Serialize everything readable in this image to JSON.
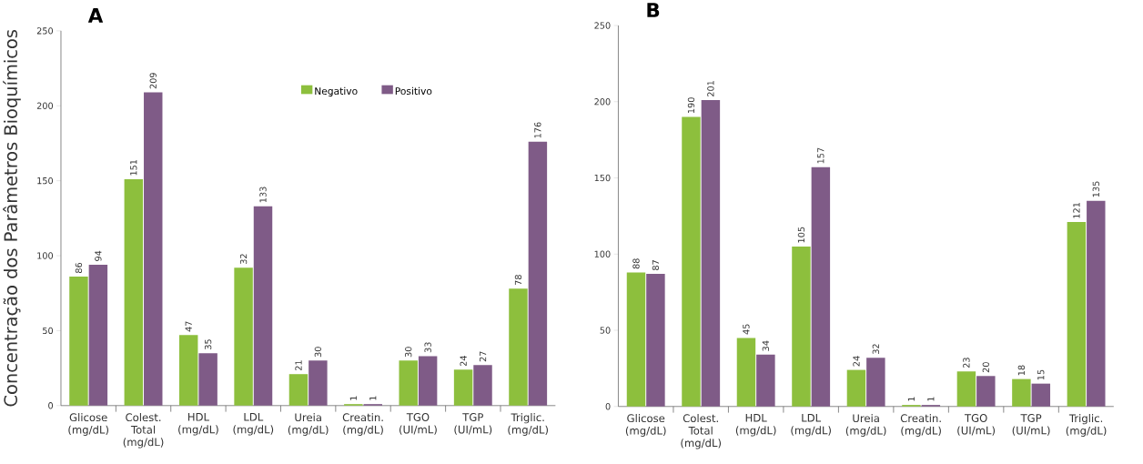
{
  "chart_data": [
    {
      "type": "bar",
      "title": "A",
      "ylabel": "Concentração dos Parâmetros Bioquímicos",
      "categories": [
        "Glicose (mg/dL)",
        "Colest. Total (mg/dL)",
        "HDL (mg/dL)",
        "LDL (mg/dL)",
        "Ureia (mg/dL)",
        "Creatin. (mg/dL)",
        "TGO (UI/mL)",
        "TGP (UI/mL)",
        "Triglic. (mg/dL)"
      ],
      "series": [
        {
          "name": "Negativo",
          "color": "#8dbf3d",
          "values": [
            86,
            151,
            47,
            92,
            21,
            1,
            30,
            24,
            78
          ],
          "value_labels": [
            "86",
            "151",
            "47",
            null,
            "21",
            "1",
            "30",
            "24",
            "78"
          ]
        },
        {
          "name": "Positivo",
          "color": "#7f5b87",
          "values": [
            94,
            209,
            35,
            133,
            30,
            1,
            33,
            27,
            176
          ],
          "value_labels": [
            "94",
            "209",
            "35",
            "133",
            "30",
            "1",
            "33",
            "27",
            "176"
          ]
        }
      ],
      "ylim": [
        0,
        250
      ],
      "yticks": [
        0,
        50,
        100,
        150,
        200,
        250
      ],
      "legend": "top",
      "annotations": [
        {
          "text": "32",
          "x": "LDL (mg/dL)",
          "y": 92
        }
      ]
    },
    {
      "type": "bar",
      "title": "B",
      "categories": [
        "Glicose (mg/dL)",
        "Colest. Total (mg/dL)",
        "HDL (mg/dL)",
        "LDL (mg/dL)",
        "Ureia (mg/dL)",
        "Creatin. (mg/dL)",
        "TGO (UI/mL)",
        "TGP (UI/mL)",
        "Triglic. (mg/dL)"
      ],
      "series": [
        {
          "color": "#8dbf3d",
          "values": [
            88,
            190,
            45,
            105,
            24,
            1,
            23,
            18,
            121
          ],
          "value_labels": [
            "88",
            "190",
            "45",
            "105",
            "24",
            "1",
            "23",
            "18",
            "121"
          ]
        },
        {
          "color": "#7f5b87",
          "values": [
            87,
            201,
            34,
            157,
            32,
            1,
            20,
            15,
            135
          ],
          "value_labels": [
            "87",
            "201",
            "34",
            "157",
            "32",
            "1",
            "20",
            "15",
            "135"
          ]
        }
      ],
      "ylim": [
        0,
        250
      ],
      "yticks": [
        0,
        50,
        100,
        150,
        200,
        250
      ]
    }
  ]
}
